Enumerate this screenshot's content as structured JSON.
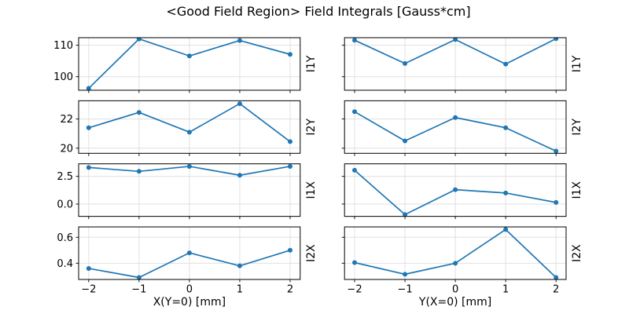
{
  "figure": {
    "title": "<Good Field Region> Field Integrals [Gauss*cm]"
  },
  "chart_data": {
    "type": "line",
    "title": "<Good Field Region> Field Integrals [Gauss*cm]",
    "x": [
      -2,
      -1,
      0,
      1,
      2
    ],
    "xlim": [
      -2.2,
      2.2
    ],
    "xtick_labels": [
      "−2",
      "−1",
      "0",
      "1",
      "2"
    ],
    "columns": [
      {
        "id": "left",
        "xlabel": "X(Y=0) [mm]"
      },
      {
        "id": "right",
        "xlabel": "Y(X=0) [mm]"
      }
    ],
    "line_color": "#1f77b4",
    "grid_color": "#e0e0e0",
    "grid": true,
    "legend": "none",
    "rows": [
      {
        "label": "I1Y",
        "ylim": [
          95.7,
          112.4
        ],
        "yticks": [
          100,
          110
        ],
        "ytick_labels": [
          "100",
          "110"
        ],
        "left": [
          96.3,
          112.0,
          106.6,
          111.5,
          107.1
        ],
        "right": [
          111.6,
          104.2,
          111.8,
          104.0,
          112.1
        ]
      },
      {
        "label": "I2Y",
        "ylim": [
          19.65,
          23.25
        ],
        "yticks": [
          20,
          22
        ],
        "ytick_labels": [
          "20",
          "22"
        ],
        "left": [
          21.4,
          22.45,
          21.1,
          23.05,
          20.45
        ],
        "right": [
          22.5,
          20.5,
          22.1,
          21.4,
          19.8
        ]
      },
      {
        "label": "I1X",
        "ylim": [
          -1.11,
          3.63
        ],
        "yticks": [
          0.0,
          2.5
        ],
        "ytick_labels": [
          "0.0",
          "2.5"
        ],
        "left": [
          3.3,
          2.95,
          3.4,
          2.6,
          3.4
        ],
        "right": [
          3.05,
          -0.95,
          1.3,
          1.0,
          0.15
        ]
      },
      {
        "label": "I2X",
        "ylim": [
          0.275,
          0.68
        ],
        "yticks": [
          0.4,
          0.6
        ],
        "ytick_labels": [
          "0.4",
          "0.6"
        ],
        "left": [
          0.36,
          0.29,
          0.48,
          0.38,
          0.5
        ],
        "right": [
          0.405,
          0.315,
          0.4,
          0.66,
          0.29
        ]
      }
    ]
  }
}
